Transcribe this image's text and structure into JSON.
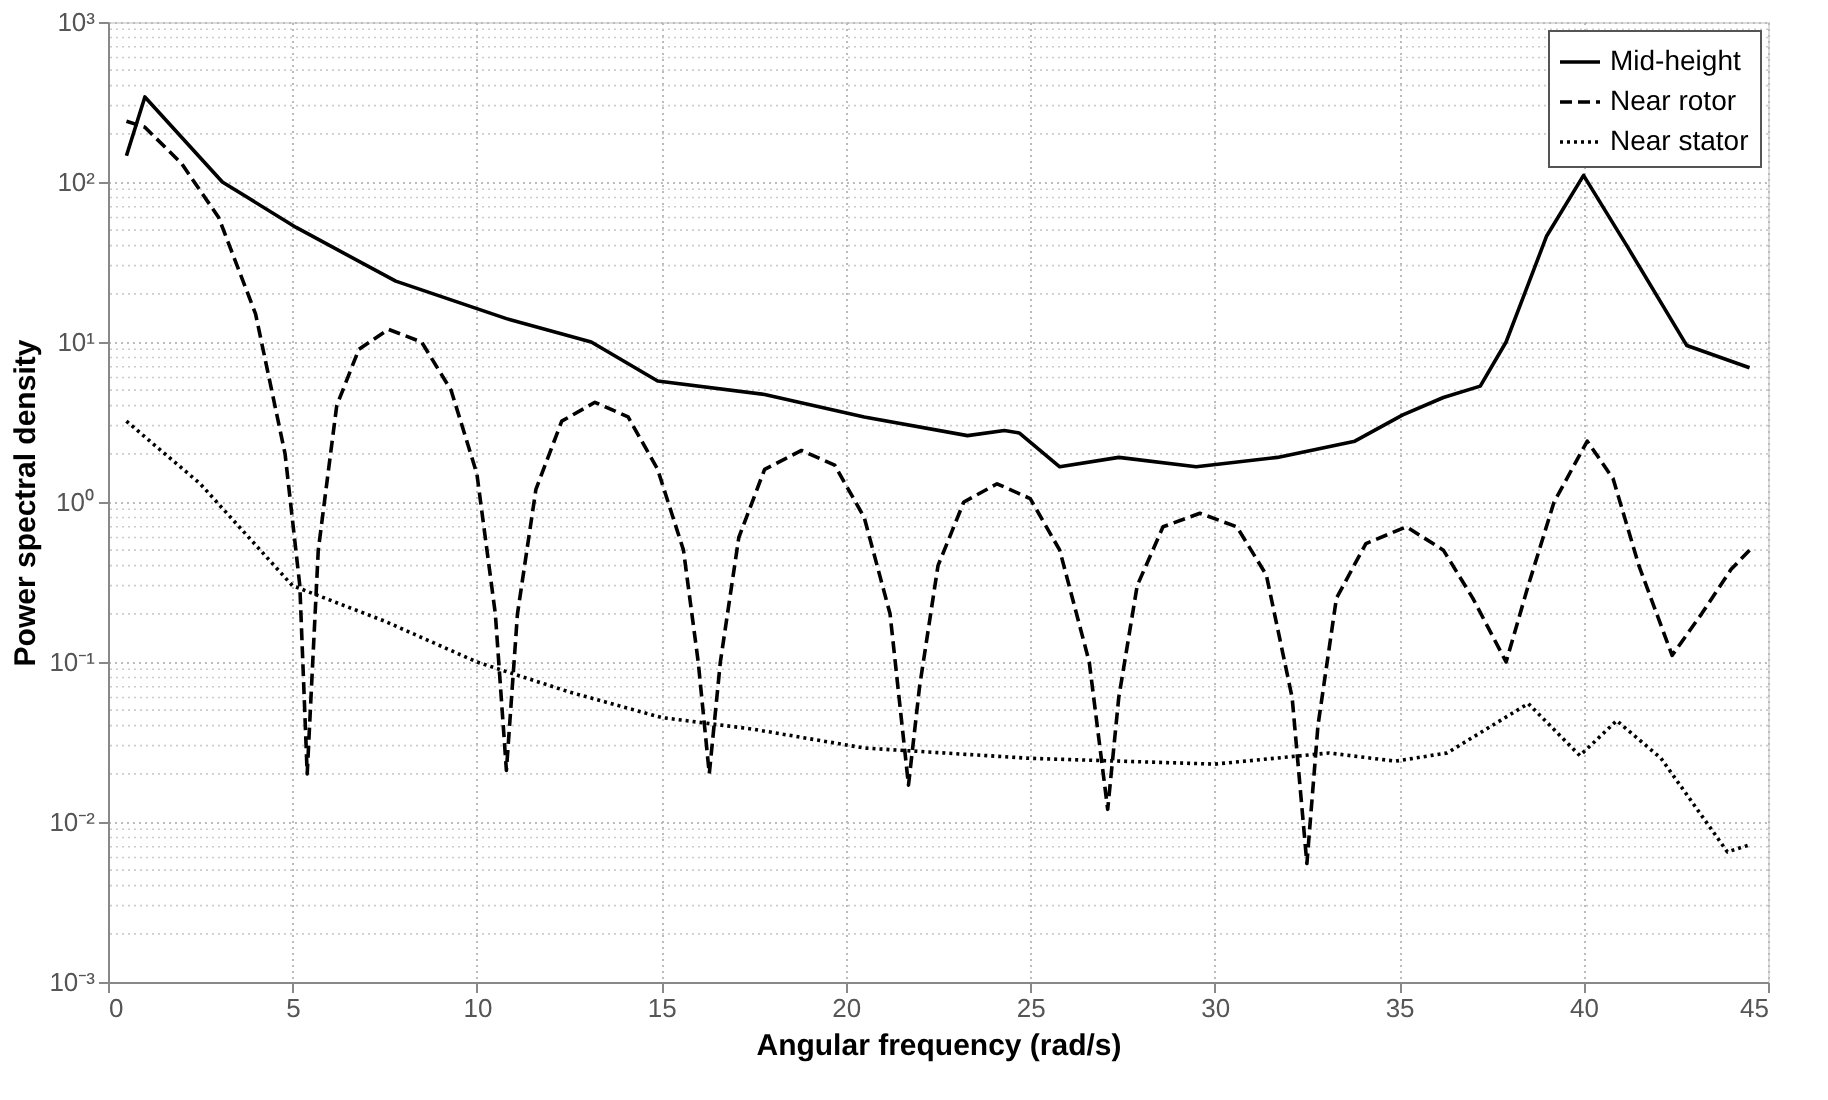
{
  "chart_data": {
    "type": "line",
    "xlabel": "Angular frequency (rad/s)",
    "ylabel": "Power spectral density",
    "log": "y",
    "grid": true,
    "legend": "top right",
    "xlim": [
      0,
      45
    ],
    "xticks": [
      0,
      5,
      10,
      15,
      20,
      25,
      30,
      35,
      40,
      45
    ],
    "ylim": [
      0.001,
      1000
    ],
    "yticks": [
      {
        "value": 0.001,
        "label": "10⁻³"
      },
      {
        "value": 0.01,
        "label": "10⁻²"
      },
      {
        "value": 0.1,
        "label": "10⁻¹"
      },
      {
        "value": 1,
        "label": "10⁰"
      },
      {
        "value": 10,
        "label": "10¹"
      },
      {
        "value": 100,
        "label": "10²"
      },
      {
        "value": 1000,
        "label": "10³"
      }
    ],
    "series": [
      {
        "name": "Mid-height",
        "color": "#000000",
        "line_style": "solid",
        "x": [
          0.5,
          1.0,
          3.1,
          5.1,
          7.8,
          10.8,
          13.1,
          14.9,
          17.8,
          20.5,
          23.3,
          24.3,
          24.7,
          25.8,
          27.4,
          29.5,
          31.7,
          33.8,
          35.1,
          36.2,
          37.2,
          37.9,
          39.0,
          40.0,
          41.2,
          42.8,
          44.5
        ],
        "values": [
          146,
          340,
          100,
          52,
          24,
          14,
          10,
          5.7,
          4.7,
          3.4,
          2.6,
          2.8,
          2.7,
          1.66,
          1.9,
          1.66,
          1.9,
          2.4,
          3.5,
          4.5,
          5.3,
          10,
          46,
          110,
          39,
          9.5,
          6.9
        ]
      },
      {
        "name": "Near rotor",
        "color": "#000000",
        "line_style": "dashed",
        "x": [
          0.5,
          1,
          2,
          3,
          4,
          4.8,
          5.2,
          5.4,
          5.7,
          6.2,
          6.8,
          7.6,
          8.5,
          9.3,
          10,
          10.5,
          10.8,
          11.1,
          11.6,
          12.3,
          13.2,
          14.1,
          14.9,
          15.6,
          16.0,
          16.3,
          16.6,
          17.1,
          17.8,
          18.8,
          19.7,
          20.5,
          21.2,
          21.7,
          22.0,
          22.5,
          23.2,
          24.1,
          25,
          25.8,
          26.6,
          27.1,
          27.4,
          27.9,
          28.6,
          29.6,
          30.6,
          31.4,
          32.1,
          32.5,
          32.8,
          33.3,
          34.1,
          35.2,
          36.2,
          37.0,
          37.9,
          38.5,
          39.2,
          40.1,
          40.8,
          41.5,
          42.4,
          43.2,
          44,
          44.5
        ],
        "values": [
          240,
          220,
          130,
          60,
          15,
          2,
          0.3,
          0.02,
          0.5,
          4,
          9,
          12,
          10,
          5,
          1.5,
          0.2,
          0.021,
          0.2,
          1.2,
          3.2,
          4.2,
          3.4,
          1.6,
          0.5,
          0.1,
          0.02,
          0.1,
          0.6,
          1.6,
          2.1,
          1.7,
          0.8,
          0.2,
          0.017,
          0.07,
          0.4,
          1.0,
          1.3,
          1.05,
          0.5,
          0.1,
          0.012,
          0.06,
          0.3,
          0.7,
          0.85,
          0.7,
          0.35,
          0.06,
          0.0055,
          0.04,
          0.25,
          0.55,
          0.7,
          0.5,
          0.25,
          0.1,
          0.3,
          1.0,
          2.4,
          1.4,
          0.4,
          0.11,
          0.2,
          0.38,
          0.5
        ]
      },
      {
        "name": "Near stator",
        "color": "#000000",
        "line_style": "dotted",
        "x": [
          0.5,
          2.5,
          5,
          7.5,
          10,
          12.5,
          15,
          17.5,
          20.5,
          25,
          30,
          33.1,
          34.9,
          36.3,
          38.5,
          39.9,
          40.9,
          42.1,
          43.9,
          44.5
        ],
        "values": [
          3.2,
          1.3,
          0.3,
          0.18,
          0.1,
          0.065,
          0.045,
          0.038,
          0.029,
          0.025,
          0.023,
          0.027,
          0.024,
          0.027,
          0.055,
          0.026,
          0.043,
          0.025,
          0.0065,
          0.0072
        ]
      }
    ]
  }
}
